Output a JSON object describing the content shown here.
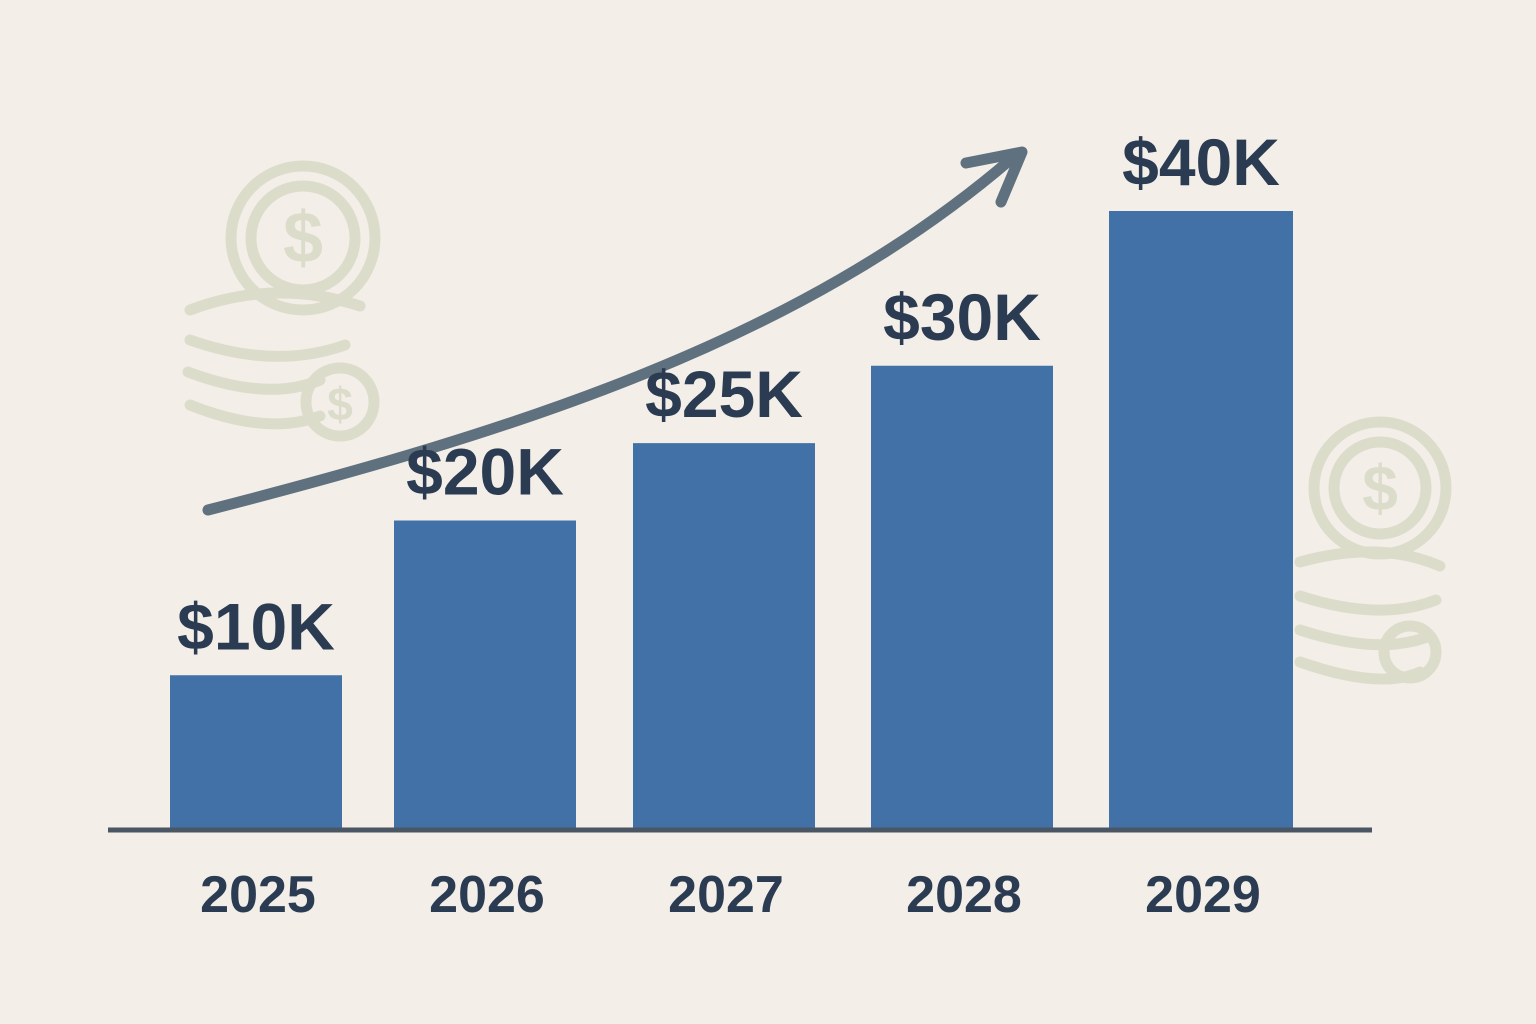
{
  "colors": {
    "background": "#f3eee8",
    "bar": "#4271a8",
    "label": "#2a3b52",
    "axis": "#4a5663",
    "trend_arrow": "#5f707e",
    "coin_decoration": "#dcdccb"
  },
  "icons": {
    "trend": "upward-curved-arrow-icon",
    "decoration": "dollar-coin-stack-icon"
  },
  "chart_data": {
    "type": "bar",
    "categories": [
      "2025",
      "2026",
      "2027",
      "2028",
      "2029"
    ],
    "values": [
      10,
      20,
      25,
      30,
      40
    ],
    "data_labels": [
      "$10K",
      "$20K",
      "$25K",
      "$30K",
      "$40K"
    ],
    "unit": "K USD",
    "ylim": [
      0,
      50
    ],
    "grid": false,
    "legend": "none",
    "annotations": [
      "upward trend arrow"
    ]
  }
}
